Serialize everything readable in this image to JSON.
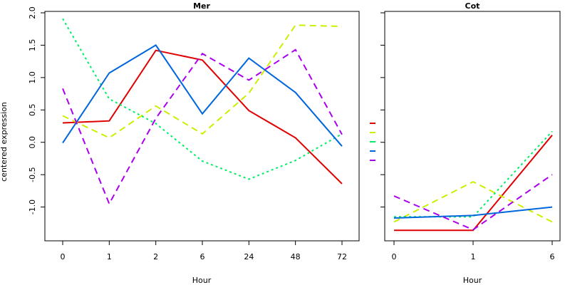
{
  "chart_data": {
    "ylabel": "centered expression",
    "yticks": [
      -1.0,
      -0.5,
      0.0,
      0.5,
      1.0,
      1.5,
      2.0
    ],
    "ytick_labels": [
      "-1.0",
      "-0.5",
      "0.0",
      "0.5",
      "1.0",
      "1.5",
      "2.0"
    ],
    "ylim": [
      -1.5,
      2.0
    ],
    "series_styles": [
      {
        "color": "#e00000",
        "dash": "solid"
      },
      {
        "color": "#ccee00",
        "dash": "dashed"
      },
      {
        "color": "#00ee66",
        "dash": "dotted"
      },
      {
        "color": "#0066dd",
        "dash": "solid"
      },
      {
        "color": "#aa00ee",
        "dash": "dashed"
      }
    ],
    "panels": [
      {
        "type": "line",
        "title": "Mer",
        "xlabel": "Hour",
        "categories": [
          "0",
          "1",
          "2",
          "6",
          "24",
          "48",
          "72"
        ],
        "series": [
          {
            "values": [
              0.3,
              0.33,
              1.42,
              1.27,
              0.49,
              0.07,
              -0.64
            ]
          },
          {
            "values": [
              0.41,
              0.07,
              0.56,
              0.13,
              0.76,
              1.81,
              1.79
            ]
          },
          {
            "values": [
              1.91,
              0.67,
              0.29,
              -0.29,
              -0.57,
              -0.28,
              0.13
            ]
          },
          {
            "values": [
              -0.01,
              1.07,
              1.5,
              0.44,
              1.3,
              0.77,
              -0.06
            ]
          },
          {
            "values": [
              0.83,
              -0.95,
              0.37,
              1.37,
              0.96,
              1.43,
              0.12
            ]
          }
        ]
      },
      {
        "type": "line",
        "title": "Cot",
        "xlabel": "Hour",
        "categories": [
          "0",
          "1",
          "6"
        ],
        "series": [
          {
            "values": [
              -1.36,
              -1.36,
              0.11
            ]
          },
          {
            "values": [
              -1.23,
              -0.61,
              -1.23
            ]
          },
          {
            "values": [
              -1.15,
              -1.15,
              0.17
            ]
          },
          {
            "values": [
              -1.17,
              -1.13,
              -1.0
            ]
          },
          {
            "values": [
              -0.83,
              -1.35,
              -0.5
            ]
          }
        ]
      }
    ]
  }
}
